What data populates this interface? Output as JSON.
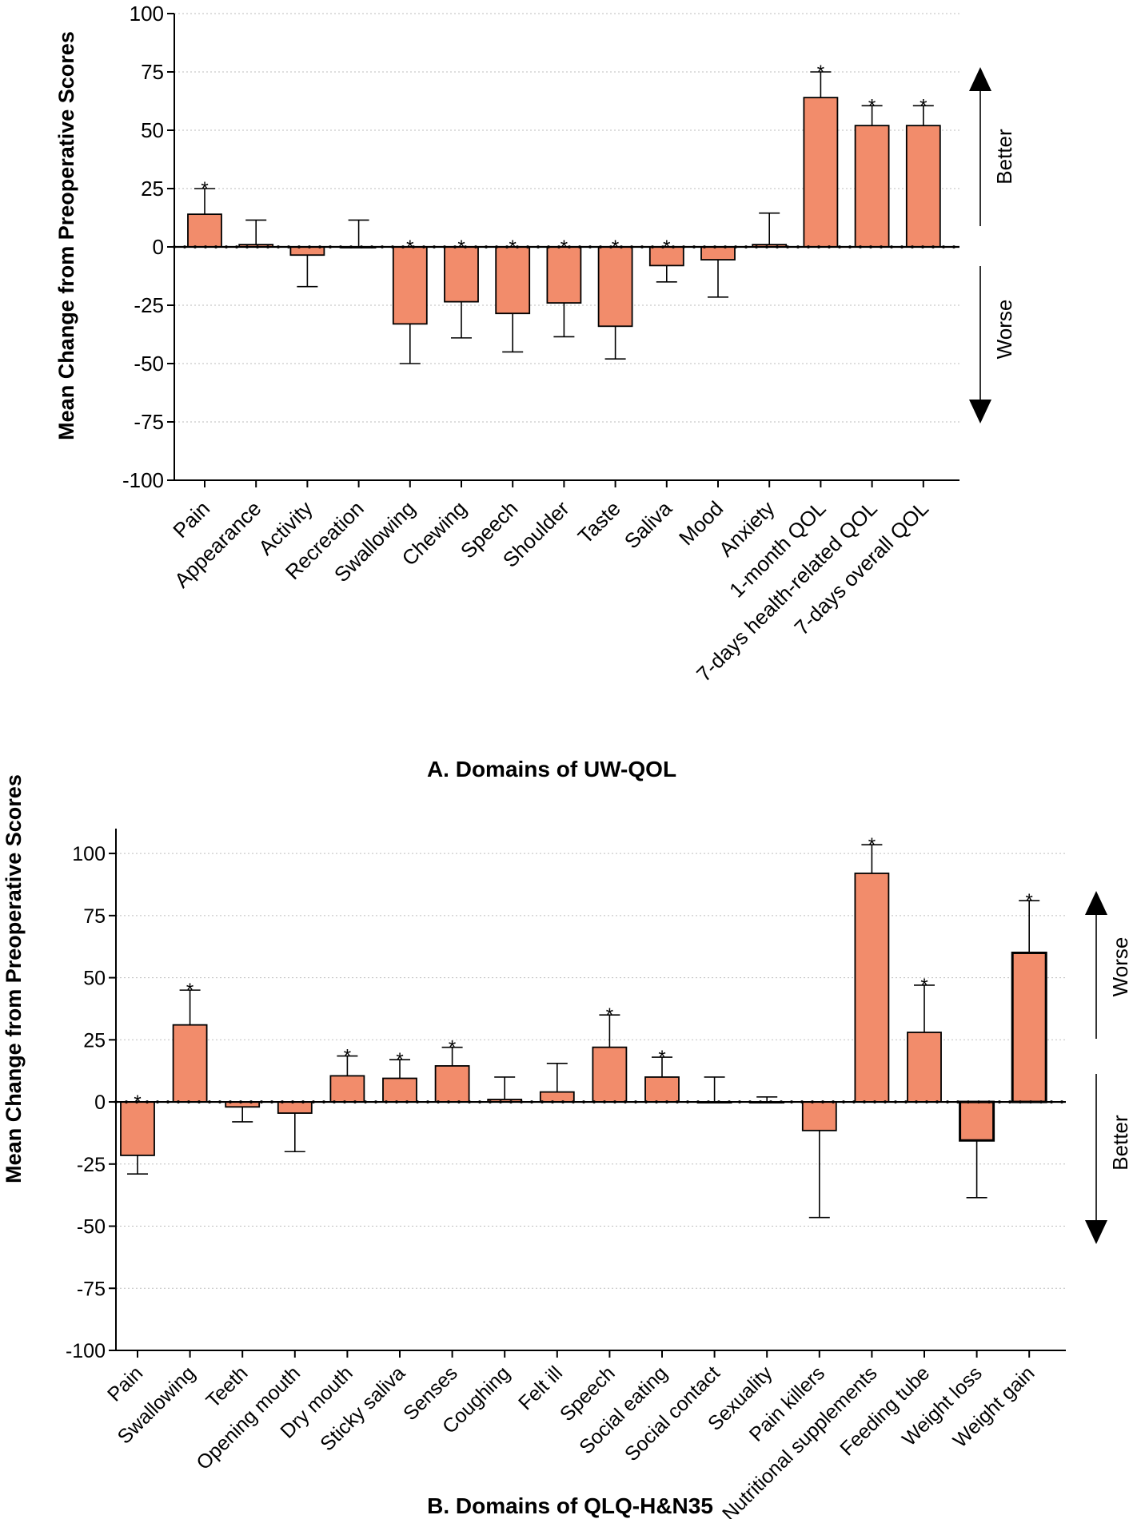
{
  "chart_data": [
    {
      "type": "bar",
      "panel_caption": "A. Domains of UW-QOL",
      "ylabel": "Mean Change from Preoperative Scores",
      "ylim": [
        -100,
        100
      ],
      "yticks": [
        100,
        75,
        50,
        25,
        0,
        -25,
        -50,
        -75,
        -100
      ],
      "grid": true,
      "categories": [
        "Pain",
        "Appearance",
        "Activity",
        "Recreation",
        "Swallowing",
        "Chewing",
        "Speech",
        "Shoulder",
        "Taste",
        "Saliva",
        "Mood",
        "Anxiety",
        "1-month QOL",
        "7-days health-related QOL",
        "7-days overall QOL"
      ],
      "values": [
        14,
        1,
        -3.5,
        0,
        -33,
        -23.5,
        -28.5,
        -24,
        -34,
        -8,
        -5.5,
        1,
        64,
        52,
        52
      ],
      "error_ends": [
        25,
        11.5,
        -17,
        11.5,
        -50,
        -39,
        -45,
        -38.5,
        -48,
        -15,
        -21.5,
        14.5,
        75,
        60.5,
        60.5
      ],
      "significant": [
        true,
        false,
        false,
        false,
        true,
        true,
        true,
        true,
        true,
        true,
        false,
        false,
        true,
        true,
        true
      ],
      "significance_marker": "*",
      "direction_up_label": "Better",
      "direction_down_label": "Worse",
      "bar_color": "#F28C6B"
    },
    {
      "type": "bar",
      "panel_caption": "B. Domains of QLQ-H&N35",
      "ylabel": "Mean Change from Preoperative Scores",
      "ylim": [
        -100,
        110
      ],
      "yticks": [
        100,
        75,
        50,
        25,
        0,
        -25,
        -50,
        -75,
        -100
      ],
      "grid": true,
      "categories": [
        "Pain",
        "Swallowing",
        "Teeth",
        "Opening mouth",
        "Dry mouth",
        "Sticky saliva",
        "Senses",
        "Coughing",
        "Felt ill",
        "Speech",
        "Social eating",
        "Social contact",
        "Sexuality",
        "Pain killers",
        "Nutritional supplements",
        "Feeding tube",
        "Weight loss",
        "Weight gain"
      ],
      "values": [
        -21.5,
        31,
        -2,
        -4.5,
        10.5,
        9.5,
        14.5,
        1,
        4,
        22,
        10,
        0,
        0,
        -11.5,
        92,
        28,
        -15.5,
        60
      ],
      "error_ends": [
        -29,
        45,
        -8,
        -20,
        18.5,
        17,
        22,
        10,
        15.5,
        35,
        18,
        10,
        2,
        -46.5,
        103.5,
        47,
        -38.5,
        81
      ],
      "significant": [
        true,
        true,
        false,
        false,
        true,
        true,
        true,
        false,
        false,
        true,
        true,
        false,
        false,
        false,
        true,
        true,
        false,
        true
      ],
      "significance_marker": "*",
      "direction_up_label": "Worse",
      "direction_down_label": "Better",
      "bar_color": "#F28C6B"
    }
  ]
}
